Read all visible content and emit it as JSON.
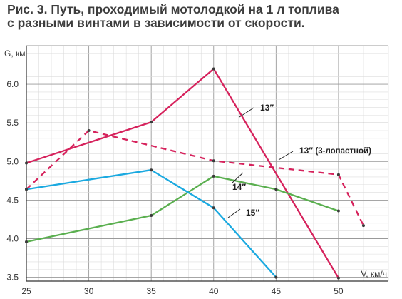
{
  "title_lines": [
    "Рис. 3. Путь, проходимый мотолодкой на 1 л топлива",
    "с разными винтами в зависимости от скорости."
  ],
  "chart_data": {
    "type": "line",
    "title": "Рис. 3. Путь, проходимый мотолодкой на 1 л топлива с разными винтами в зависимости от скорости.",
    "ylabel": "G, км",
    "xlabel": "V, км/ч",
    "x_ticks": [
      25,
      30,
      35,
      40,
      45,
      50
    ],
    "y_ticks": [
      "3.5",
      "4.0",
      "4.5",
      "5.0",
      "5.5",
      "6.0"
    ],
    "xlim": [
      25,
      54
    ],
    "ylim": [
      3.45,
      6.5
    ],
    "grid": true,
    "series": [
      {
        "name": "13″",
        "color": "#d6225c",
        "style": "solid",
        "points": [
          [
            25,
            4.98
          ],
          [
            35,
            5.51
          ],
          [
            40,
            6.2
          ],
          [
            50,
            3.49
          ]
        ]
      },
      {
        "name": "13″ (3-лопастной)",
        "label_main": "13″",
        "label_note": "(3-лопастной)",
        "color": "#d6225c",
        "style": "dashed",
        "points": [
          [
            25,
            4.64
          ],
          [
            30,
            5.4
          ],
          [
            40,
            5.01
          ],
          [
            50,
            4.83
          ],
          [
            52,
            4.17
          ]
        ]
      },
      {
        "name": "14″",
        "color": "#5aaf4f",
        "style": "solid",
        "points": [
          [
            25,
            3.96
          ],
          [
            35,
            4.3
          ],
          [
            40,
            4.81
          ],
          [
            45,
            4.64
          ],
          [
            50,
            4.36
          ]
        ]
      },
      {
        "name": "15″",
        "color": "#1aa9e0",
        "style": "solid",
        "points": [
          [
            25,
            4.64
          ],
          [
            35,
            4.89
          ],
          [
            40,
            4.4
          ],
          [
            45,
            3.5
          ]
        ]
      }
    ]
  }
}
